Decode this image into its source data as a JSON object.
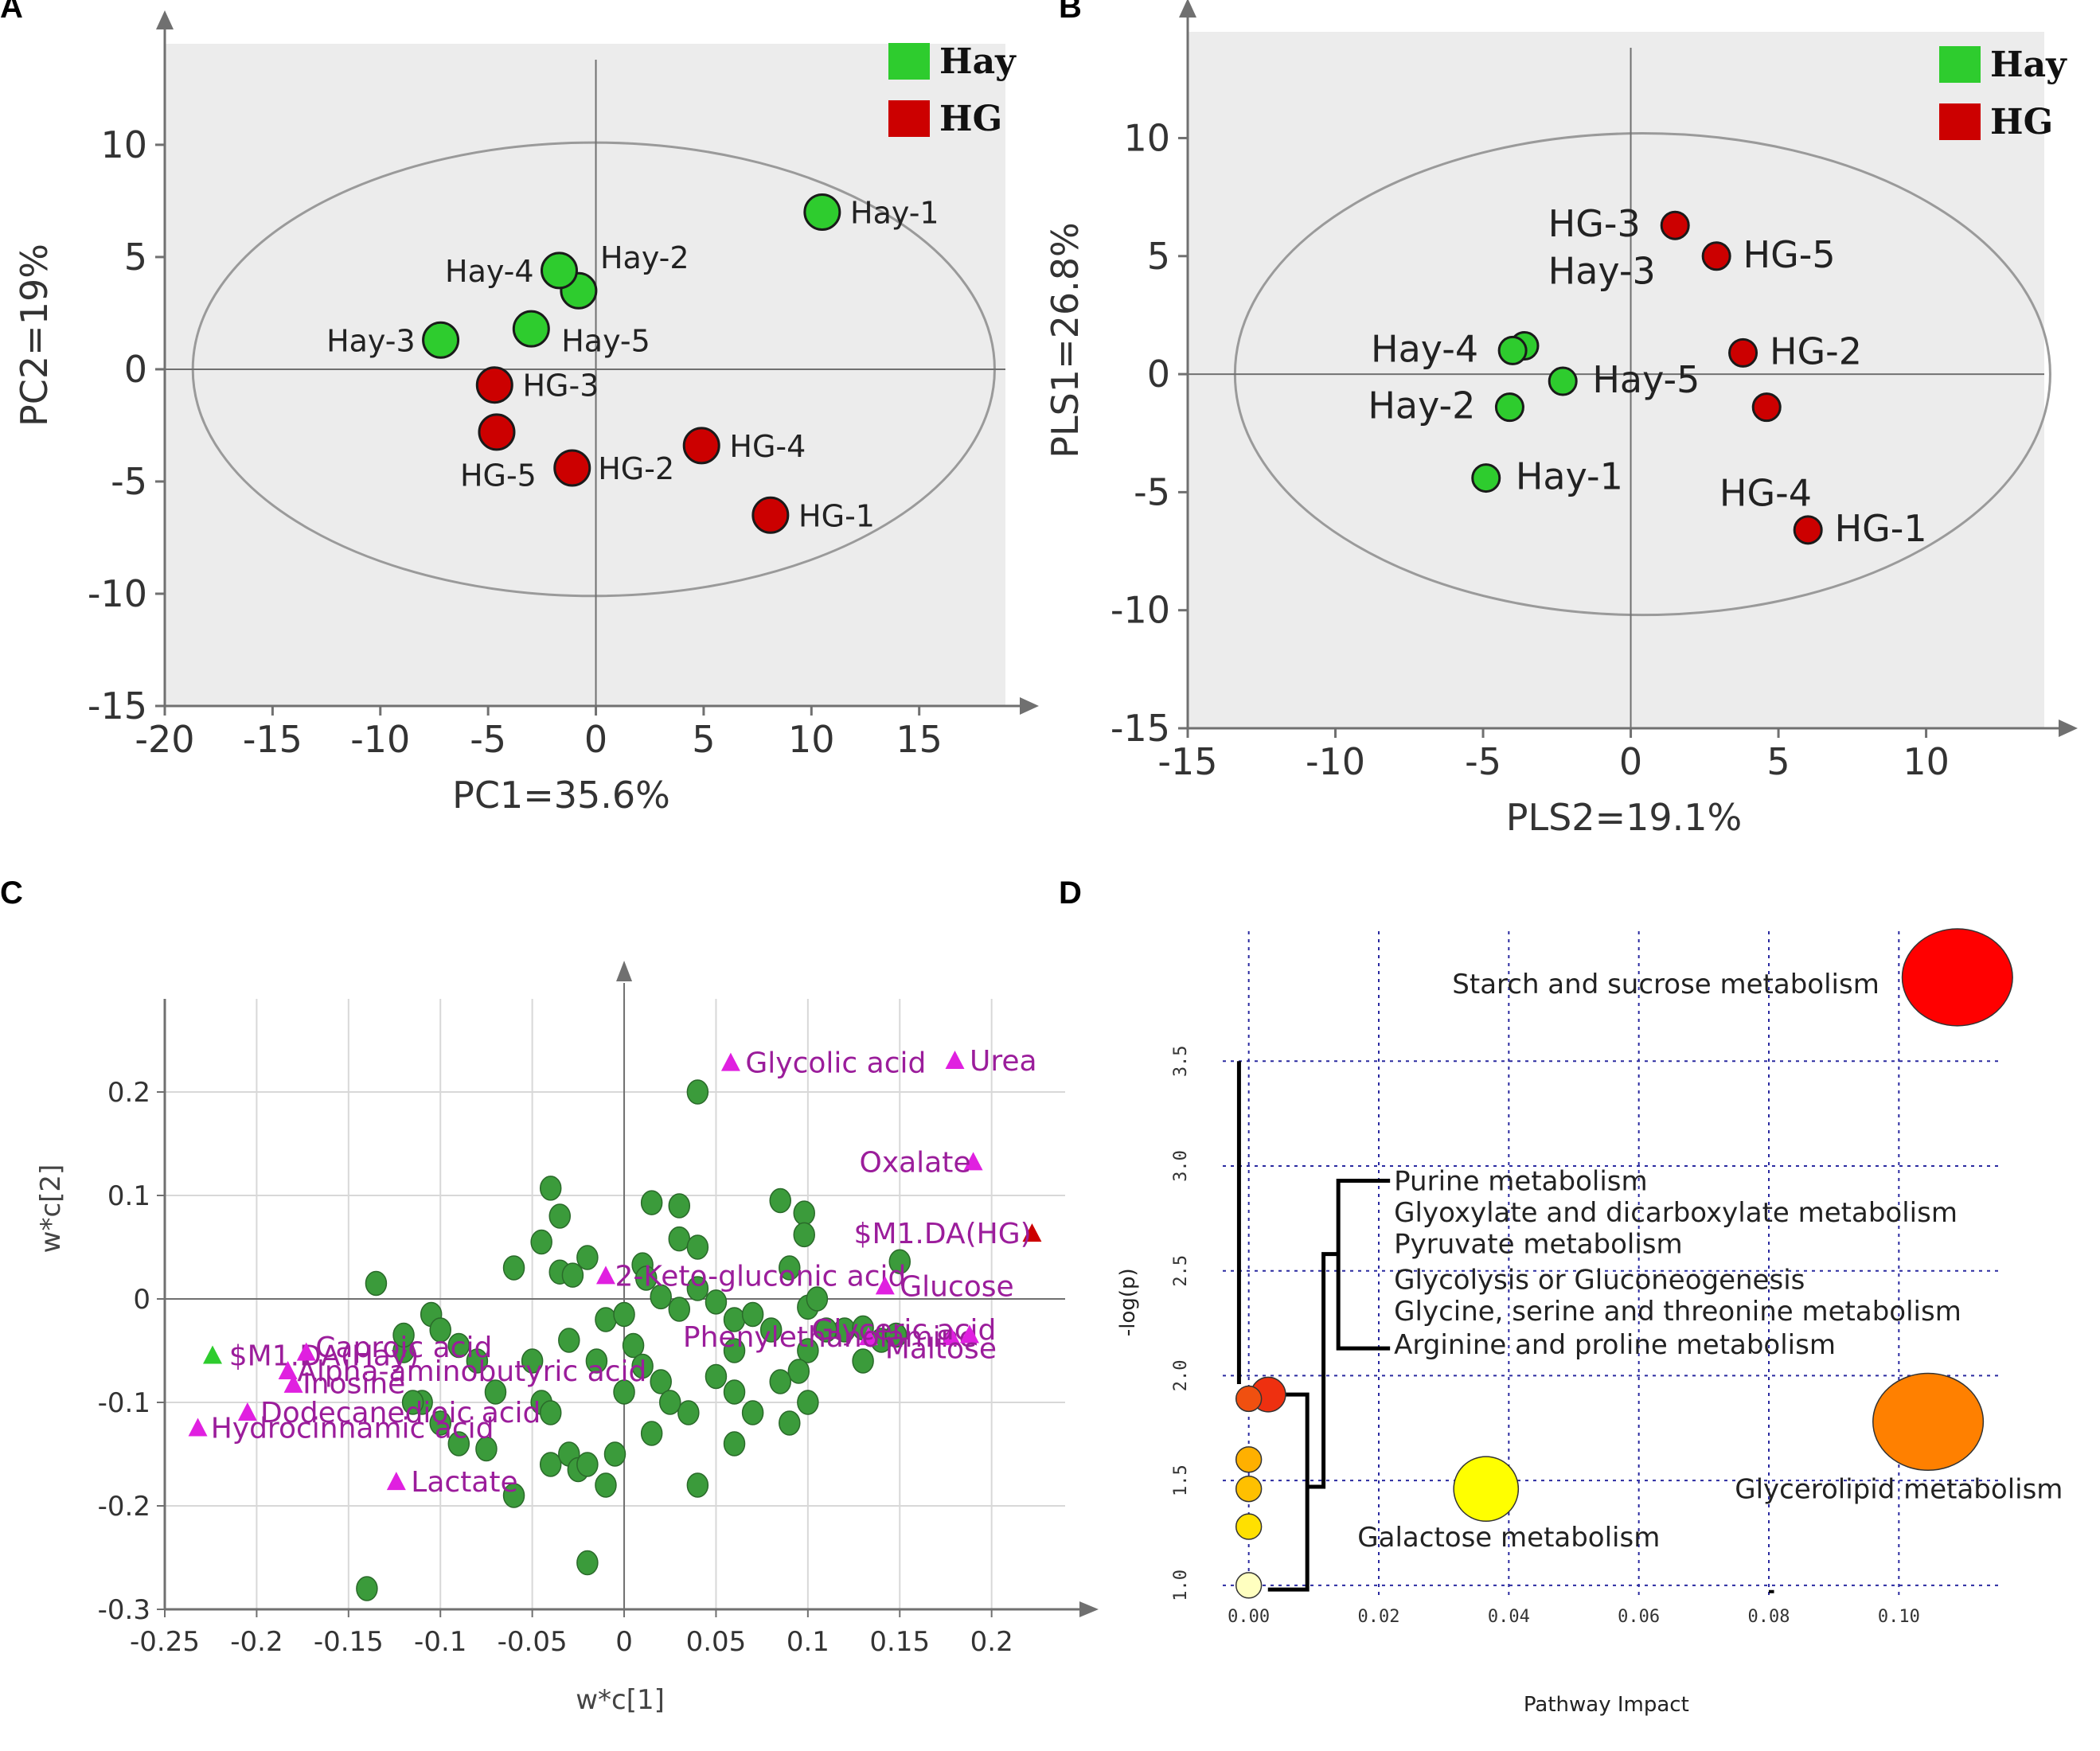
{
  "colors": {
    "hay": "#2ecc2e",
    "hg": "#cc0000",
    "magenta": "#e020e0",
    "green_var": "#3b9b3b"
  },
  "chart_data": [
    {
      "panel": "A",
      "type": "scatter",
      "xlabel": "PC1=35.6%",
      "ylabel": "PC2=19%",
      "xlim": [
        -20,
        19
      ],
      "ylim": [
        -15,
        14.5
      ],
      "xticks": [
        -20,
        -15,
        -10,
        -5,
        0,
        5,
        10,
        15
      ],
      "yticks": [
        -15,
        -10,
        -5,
        0,
        5,
        10
      ],
      "ellipse": {
        "cx": -0.1,
        "cy": 0,
        "rx": 18.6,
        "ry": 10.1
      },
      "legend": [
        {
          "label": "Hay",
          "color": "#2ecc2e"
        },
        {
          "label": "HG",
          "color": "#cc0000"
        }
      ],
      "series": [
        {
          "name": "Hay",
          "color": "#2ecc2e",
          "points": [
            {
              "label": "Hay-1",
              "x": 10.5,
              "y": 7.0,
              "lx": 1.3,
              "ly": 0
            },
            {
              "label": "Hay-2",
              "x": -0.8,
              "y": 3.5,
              "lx": 1.0,
              "ly": 1.5
            },
            {
              "label": "Hay-4",
              "x": -1.7,
              "y": 4.4,
              "lx": -5.3,
              "ly": 0
            },
            {
              "label": "Hay-5",
              "x": -3.0,
              "y": 1.8,
              "lx": 1.4,
              "ly": -0.5
            },
            {
              "label": "Hay-3",
              "x": -7.2,
              "y": 1.3,
              "lx": -5.3,
              "ly": 0
            }
          ]
        },
        {
          "name": "HG",
          "color": "#cc0000",
          "points": [
            {
              "label": "HG-3",
              "x": -4.7,
              "y": -0.7,
              "lx": 1.3,
              "ly": 0
            },
            {
              "label": "HG-5",
              "x": -4.6,
              "y": -2.8,
              "lx": -1.7,
              "ly": -1.9
            },
            {
              "label": "HG-2",
              "x": -1.1,
              "y": -4.4,
              "lx": 1.2,
              "ly": 0
            },
            {
              "label": "HG-4",
              "x": 4.9,
              "y": -3.4,
              "lx": 1.3,
              "ly": 0
            },
            {
              "label": "HG-1",
              "x": 8.1,
              "y": -6.5,
              "lx": 1.3,
              "ly": 0
            }
          ]
        }
      ]
    },
    {
      "panel": "B",
      "type": "scatter",
      "xlabel": "PLS2=19.1%",
      "ylabel": "PLS1=26.8%",
      "xlim": [
        -15,
        14
      ],
      "ylim": [
        -15,
        14.5
      ],
      "xticks": [
        -15,
        -10,
        -5,
        0,
        5,
        10
      ],
      "yticks": [
        -15,
        -10,
        -5,
        0,
        5,
        10
      ],
      "ellipse": {
        "cx": 0.4,
        "cy": 0,
        "rx": 13.8,
        "ry": 10.2
      },
      "legend": [
        {
          "label": "Hay",
          "color": "#2ecc2e"
        },
        {
          "label": "HG",
          "color": "#cc0000"
        }
      ],
      "series": [
        {
          "name": "Hay",
          "color": "#2ecc2e",
          "points": [
            {
              "label": "Hay-3",
              "x": -3.6,
              "y": 1.2,
              "lx": 0.8,
              "ly": 3.1
            },
            {
              "label": "Hay-4",
              "x": -4.0,
              "y": 1.0,
              "lx": -4.8,
              "ly": 0
            },
            {
              "label": "Hay-5",
              "x": -2.3,
              "y": -0.3,
              "lx": 1.0,
              "ly": 0
            },
            {
              "label": "Hay-2",
              "x": -4.1,
              "y": -1.4,
              "lx": -4.8,
              "ly": 0
            },
            {
              "label": "Hay-1",
              "x": -4.9,
              "y": -4.4,
              "lx": 1.0,
              "ly": 0
            }
          ]
        },
        {
          "name": "HG",
          "color": "#cc0000",
          "points": [
            {
              "label": "HG-3",
              "x": 1.5,
              "y": 6.3,
              "lx": -4.3,
              "ly": 0
            },
            {
              "label": "HG-5",
              "x": 2.9,
              "y": 5.0,
              "lx": 0.9,
              "ly": 0
            },
            {
              "label": "HG-2",
              "x": 3.8,
              "y": 0.9,
              "lx": 0.9,
              "ly": 0
            },
            {
              "label": "HG-4",
              "x": 4.6,
              "y": -1.4,
              "lx": -1.6,
              "ly": -3.7
            },
            {
              "label": "HG-1",
              "x": 6.0,
              "y": -6.6,
              "lx": 0.9,
              "ly": 0
            }
          ]
        }
      ]
    },
    {
      "panel": "C",
      "type": "scatter",
      "xlabel": "w*c[1]",
      "ylabel": "w*c[2]",
      "xlim": [
        -0.25,
        0.24
      ],
      "ylim": [
        -0.3,
        0.29
      ],
      "xticks": [
        -0.25,
        -0.2,
        -0.15,
        -0.1,
        -0.05,
        0,
        0.05,
        0.1,
        0.15,
        0.2
      ],
      "yticks": [
        -0.3,
        -0.2,
        -0.1,
        0,
        0.1,
        0.2
      ],
      "ytick_labels": [
        "-0.3",
        "-0.2",
        "-0.1",
        "0",
        "0.1",
        "0.2"
      ],
      "xtick_labels": [
        "-0.25",
        "-0.2",
        "-0.15",
        "-0.1",
        "-0.05",
        "0",
        "0.05",
        "0.1",
        "0.15",
        "0.2"
      ],
      "variables": [
        [
          0.04,
          0.2
        ],
        [
          0.085,
          0.095
        ],
        [
          0.098,
          0.083
        ],
        [
          0.098,
          0.062
        ],
        [
          0.015,
          0.093
        ],
        [
          0.03,
          0.09
        ],
        [
          -0.04,
          0.107
        ],
        [
          -0.035,
          0.08
        ],
        [
          -0.06,
          0.03
        ],
        [
          -0.035,
          0.026
        ],
        [
          -0.028,
          0.023
        ],
        [
          0.03,
          0.058
        ],
        [
          0.04,
          0.05
        ],
        [
          0.01,
          0.033
        ],
        [
          0.012,
          0.02
        ],
        [
          0.02,
          0.002
        ],
        [
          0.03,
          -0.01
        ],
        [
          0.04,
          0.01
        ],
        [
          0.05,
          -0.003
        ],
        [
          0.06,
          -0.02
        ],
        [
          0.1,
          -0.008
        ],
        [
          0.105,
          0.0
        ],
        [
          0.12,
          -0.03
        ],
        [
          0.13,
          -0.028
        ],
        [
          0.14,
          -0.04
        ],
        [
          0.15,
          0.036
        ],
        [
          0.148,
          -0.035
        ],
        [
          0.13,
          -0.06
        ],
        [
          0.11,
          -0.03
        ],
        [
          0.1,
          -0.05
        ],
        [
          0.095,
          -0.07
        ],
        [
          0.085,
          -0.08
        ],
        [
          0.09,
          -0.12
        ],
        [
          0.1,
          -0.1
        ],
        [
          0.07,
          -0.11
        ],
        [
          0.06,
          -0.09
        ],
        [
          0.05,
          -0.075
        ],
        [
          0.035,
          -0.11
        ],
        [
          0.04,
          -0.18
        ],
        [
          0.06,
          -0.14
        ],
        [
          -0.135,
          0.015
        ],
        [
          -0.14,
          -0.28
        ],
        [
          -0.12,
          -0.05
        ],
        [
          -0.105,
          -0.015
        ],
        [
          -0.1,
          -0.03
        ],
        [
          -0.09,
          -0.045
        ],
        [
          -0.08,
          -0.06
        ],
        [
          -0.07,
          -0.09
        ],
        [
          -0.11,
          -0.1
        ],
        [
          -0.1,
          -0.12
        ],
        [
          -0.09,
          -0.14
        ],
        [
          -0.075,
          -0.145
        ],
        [
          -0.06,
          -0.19
        ],
        [
          -0.045,
          -0.1
        ],
        [
          -0.04,
          -0.11
        ],
        [
          -0.04,
          -0.16
        ],
        [
          -0.03,
          -0.15
        ],
        [
          -0.025,
          -0.165
        ],
        [
          -0.02,
          -0.16
        ],
        [
          -0.01,
          -0.18
        ],
        [
          -0.02,
          -0.255
        ],
        [
          0.0,
          -0.09
        ],
        [
          0.005,
          -0.045
        ],
        [
          0.01,
          -0.065
        ],
        [
          0.015,
          -0.13
        ],
        [
          -0.005,
          -0.15
        ],
        [
          0.02,
          -0.08
        ],
        [
          0.025,
          -0.1
        ],
        [
          -0.015,
          -0.06
        ],
        [
          -0.03,
          -0.04
        ],
        [
          -0.05,
          -0.06
        ],
        [
          -0.01,
          -0.02
        ],
        [
          0.0,
          -0.015
        ],
        [
          -0.12,
          -0.035
        ],
        [
          0.06,
          -0.05
        ],
        [
          0.08,
          -0.03
        ],
        [
          0.07,
          -0.015
        ],
        [
          0.09,
          0.03
        ],
        [
          -0.02,
          0.04
        ],
        [
          -0.045,
          0.055
        ],
        [
          -0.115,
          -0.1
        ]
      ],
      "labels": [
        {
          "text": "Glycolic acid",
          "x": 0.058,
          "y": 0.228,
          "color": "#e020e0",
          "tx": 0.066,
          "ty": 0.228
        },
        {
          "text": "Urea",
          "x": 0.18,
          "y": 0.23,
          "color": "#e020e0",
          "tx": 0.188,
          "ty": 0.23
        },
        {
          "text": "Oxalate",
          "x": 0.19,
          "y": 0.132,
          "color": "#e020e0",
          "tx": 0.128,
          "ty": 0.132
        },
        {
          "text": "$M1.DA(HG)",
          "x": 0.222,
          "y": 0.063,
          "color": "#cc0000",
          "tx": 0.125,
          "ty": 0.063
        },
        {
          "text": "2-Keto-gluconic acid",
          "x": -0.01,
          "y": 0.022,
          "color": "#e020e0",
          "tx": -0.005,
          "ty": 0.022
        },
        {
          "text": "Glucose",
          "x": 0.142,
          "y": 0.012,
          "color": "#e020e0",
          "tx": 0.15,
          "ty": 0.012
        },
        {
          "text": "Phenylethanolamine",
          "x": 0.133,
          "y": -0.037,
          "color": "#e020e0",
          "tx": 0.032,
          "ty": -0.037
        },
        {
          "text": "Glyceric acid",
          "x": 0.178,
          "y": -0.037,
          "color": "#e020e0",
          "tx": 0.102,
          "ty": -0.03
        },
        {
          "text": "Maltose",
          "x": 0.188,
          "y": -0.035,
          "color": "#e020e0",
          "tx": 0.142,
          "ty": -0.048
        },
        {
          "text": "$M1.DA(Hay)",
          "x": -0.224,
          "y": -0.055,
          "color": "#2ecc2e",
          "tx": -0.215,
          "ty": -0.055
        },
        {
          "text": "Caproic acid",
          "x": -0.173,
          "y": -0.052,
          "color": "#e020e0",
          "tx": -0.168,
          "ty": -0.047
        },
        {
          "text": "Alpha-aminobutyric acid",
          "x": -0.183,
          "y": -0.07,
          "color": "#e020e0",
          "tx": -0.178,
          "ty": -0.07
        },
        {
          "text": "Inosine",
          "x": -0.18,
          "y": -0.083,
          "color": "#e020e0",
          "tx": -0.175,
          "ty": -0.082
        },
        {
          "text": "Dodecanedioic acid",
          "x": -0.205,
          "y": -0.11,
          "color": "#e020e0",
          "tx": -0.198,
          "ty": -0.11
        },
        {
          "text": "Hydrocinnamic acid",
          "x": -0.232,
          "y": -0.125,
          "color": "#e020e0",
          "tx": -0.225,
          "ty": -0.125
        },
        {
          "text": "Lactate",
          "x": -0.124,
          "y": -0.177,
          "color": "#e020e0",
          "tx": -0.116,
          "ty": -0.177
        }
      ]
    },
    {
      "panel": "D",
      "type": "scatter",
      "xlabel": "Pathway Impact",
      "ylabel": "-log(p)",
      "xlim": [
        -0.004,
        0.116
      ],
      "ylim": [
        0.95,
        4.12
      ],
      "xticks": [
        0.0,
        0.02,
        0.04,
        0.06,
        0.08,
        0.1
      ],
      "xtick_labels": [
        "0.00",
        "0.02",
        "0.04",
        "0.06",
        "0.08",
        "0.10"
      ],
      "yticks": [
        1.0,
        1.5,
        2.0,
        2.5,
        3.0,
        3.5
      ],
      "ytick_labels": [
        "1.0",
        "1.5",
        "2.0",
        "2.5",
        "3.0",
        "3.5"
      ],
      "pathways": [
        {
          "name": "Starch and sucrose metabolism",
          "x": 0.109,
          "y": 3.9,
          "r": 42,
          "color": "#ff0000"
        },
        {
          "name": "Glycerolipid metabolism",
          "x": 0.1045,
          "y": 1.78,
          "r": 42,
          "color": "#ff8000"
        },
        {
          "name": "Galactose metabolism",
          "x": 0.0365,
          "y": 1.46,
          "r": 28,
          "color": "#ffff00"
        },
        {
          "name": "Purine metabolism",
          "x": 0.003,
          "y": 1.91,
          "r": 15,
          "color": "#ee3010"
        },
        {
          "name": "Glyoxylate and dicarboxylate metabolism",
          "x": 0.0,
          "y": 1.89,
          "r": 11,
          "color": "#f05010"
        },
        {
          "name": "Pyruvate metabolism",
          "x": 0.0,
          "y": 1.6,
          "r": 11,
          "color": "#ffb000"
        },
        {
          "name": "Glycolysis or Gluconeogenesis",
          "x": 0.0,
          "y": 1.46,
          "r": 11,
          "color": "#ffc000"
        },
        {
          "name": "Glycine, serine and threonine metabolism",
          "x": 0.0,
          "y": 1.28,
          "r": 11,
          "color": "#ffe000"
        },
        {
          "name": "Arginine and proline metabolism",
          "x": 0.0,
          "y": 1.0,
          "r": 11,
          "color": "#ffffc0"
        }
      ],
      "annotations": {
        "starch": "Starch and sucrose metabolism",
        "glycerolipid": "Glycerolipid metabolism",
        "galactose": "Galactose metabolism",
        "bracket_list": [
          "Purine metabolism",
          "Glyoxylate and dicarboxylate metabolism",
          "Pyruvate metabolism",
          "Glycolysis or Gluconeogenesis",
          "Glycine, serine and threonine metabolism",
          "Arginine and proline metabolism"
        ]
      }
    }
  ],
  "panels": {
    "a": "A",
    "b": "B",
    "c": "C",
    "d": "D"
  }
}
